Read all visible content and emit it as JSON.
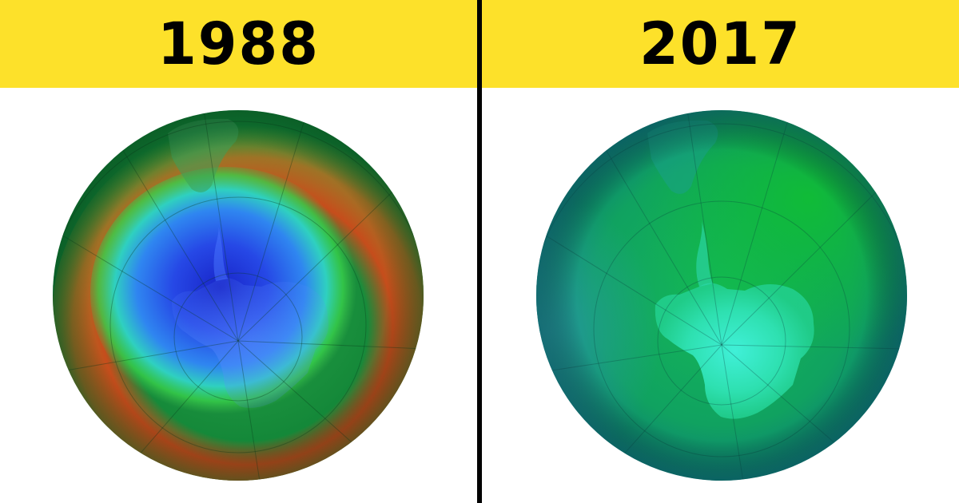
{
  "panels": [
    {
      "year": "1988",
      "colors": {
        "banner": "#fde12a",
        "hole_core": "#1a2ed8",
        "hole_mid": "#3a7af0",
        "ring_green": "#2ac43a",
        "ring_red": "#c8401c",
        "outer": "#0e8a38"
      }
    },
    {
      "year": "2017",
      "colors": {
        "banner": "#fde12a",
        "core": "#2ee8c0",
        "mid": "#12c058",
        "outer": "#0e8a6a"
      }
    }
  ]
}
